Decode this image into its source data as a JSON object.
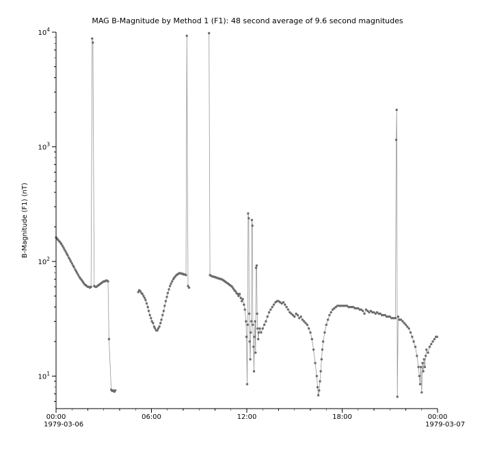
{
  "chart_data": {
    "type": "line",
    "title": "MAG B-Magnitude by Method 1 (F1): 48 second average of 9.6 second magnitudes",
    "ylabel": "B-Magnitude (F1) (nT)",
    "xlabel": "",
    "x_unit": "hours since 1979-03-06 00:00",
    "x_date_left": "1979-03-06",
    "x_date_right": "1979-03-07",
    "y_scale": "log",
    "grid": false,
    "legend": null,
    "marker_color": "#6b6b6b",
    "line_color": "#979797",
    "xlim": [
      0,
      24
    ],
    "ylim": [
      5.2,
      10000
    ],
    "x_ticks": [
      {
        "t": 0,
        "label": "00:00"
      },
      {
        "t": 6,
        "label": "06:00"
      },
      {
        "t": 12,
        "label": "12:00"
      },
      {
        "t": 18,
        "label": "18:00"
      },
      {
        "t": 24,
        "label": "00:00"
      }
    ],
    "y_ticks": [
      {
        "value": 10,
        "base": "10",
        "exp": "1"
      },
      {
        "value": 100,
        "base": "10",
        "exp": "2"
      },
      {
        "value": 1000,
        "base": "10",
        "exp": "3"
      },
      {
        "value": 10000,
        "base": "10",
        "exp": "4"
      }
    ],
    "segments": [
      [
        [
          0.0,
          162
        ],
        [
          0.07,
          158
        ],
        [
          0.13,
          154
        ],
        [
          0.2,
          150
        ],
        [
          0.27,
          146
        ],
        [
          0.33,
          142
        ],
        [
          0.4,
          137
        ],
        [
          0.47,
          132
        ],
        [
          0.53,
          127
        ],
        [
          0.6,
          122
        ],
        [
          0.67,
          117
        ],
        [
          0.73,
          113
        ],
        [
          0.8,
          108
        ],
        [
          0.87,
          104
        ],
        [
          0.93,
          100
        ],
        [
          1.0,
          96
        ],
        [
          1.07,
          92
        ],
        [
          1.13,
          89
        ],
        [
          1.2,
          85
        ],
        [
          1.27,
          82
        ],
        [
          1.33,
          79
        ],
        [
          1.4,
          76
        ],
        [
          1.47,
          73
        ],
        [
          1.53,
          71
        ],
        [
          1.6,
          69
        ],
        [
          1.67,
          67
        ],
        [
          1.73,
          65
        ],
        [
          1.8,
          63
        ],
        [
          1.87,
          62
        ],
        [
          1.93,
          61
        ],
        [
          2.0,
          60
        ],
        [
          2.07,
          60
        ],
        [
          2.13,
          59
        ],
        [
          2.2,
          60
        ],
        [
          2.27,
          8800
        ],
        [
          2.32,
          8100
        ],
        [
          2.4,
          61
        ],
        [
          2.47,
          60
        ],
        [
          2.53,
          60
        ],
        [
          2.6,
          61
        ],
        [
          2.67,
          62
        ],
        [
          2.73,
          63
        ],
        [
          2.8,
          64
        ],
        [
          2.87,
          65
        ],
        [
          2.93,
          66
        ],
        [
          3.0,
          67
        ],
        [
          3.07,
          67
        ],
        [
          3.13,
          68
        ],
        [
          3.2,
          68
        ],
        [
          3.27,
          67
        ],
        [
          3.33,
          21
        ],
        [
          3.47,
          7.6
        ],
        [
          3.53,
          7.4
        ],
        [
          3.6,
          7.5
        ],
        [
          3.67,
          7.3
        ],
        [
          3.73,
          7.5
        ]
      ],
      [
        [
          5.17,
          54
        ],
        [
          5.23,
          56
        ],
        [
          5.3,
          55
        ],
        [
          5.37,
          53
        ],
        [
          5.43,
          52
        ],
        [
          5.5,
          50
        ],
        [
          5.57,
          48
        ],
        [
          5.63,
          46
        ],
        [
          5.7,
          43
        ],
        [
          5.77,
          40
        ],
        [
          5.83,
          37
        ],
        [
          5.9,
          34
        ],
        [
          5.97,
          32
        ],
        [
          6.03,
          30
        ],
        [
          6.1,
          29
        ],
        [
          6.17,
          27
        ],
        [
          6.23,
          26
        ],
        [
          6.3,
          25
        ],
        [
          6.37,
          25
        ],
        [
          6.43,
          26
        ],
        [
          6.5,
          27
        ],
        [
          6.57,
          29
        ],
        [
          6.63,
          31
        ],
        [
          6.7,
          34
        ],
        [
          6.77,
          37
        ],
        [
          6.83,
          41
        ],
        [
          6.9,
          45
        ],
        [
          6.97,
          49
        ],
        [
          7.03,
          53
        ],
        [
          7.1,
          57
        ],
        [
          7.17,
          61
        ],
        [
          7.23,
          64
        ],
        [
          7.3,
          67
        ],
        [
          7.37,
          70
        ],
        [
          7.43,
          72
        ],
        [
          7.5,
          74
        ],
        [
          7.57,
          76
        ],
        [
          7.63,
          77
        ],
        [
          7.7,
          78
        ],
        [
          7.77,
          79
        ],
        [
          7.83,
          79
        ],
        [
          7.9,
          78
        ],
        [
          7.97,
          78
        ],
        [
          8.03,
          77
        ],
        [
          8.1,
          77
        ],
        [
          8.17,
          76
        ],
        [
          8.23,
          9300
        ],
        [
          8.3,
          61
        ],
        [
          8.37,
          59
        ]
      ],
      [
        [
          9.62,
          9800
        ],
        [
          9.68,
          76
        ],
        [
          9.75,
          75
        ],
        [
          9.82,
          74
        ],
        [
          9.88,
          74
        ],
        [
          9.95,
          73
        ],
        [
          10.02,
          73
        ],
        [
          10.08,
          72
        ],
        [
          10.15,
          72
        ],
        [
          10.22,
          71
        ],
        [
          10.28,
          71
        ],
        [
          10.35,
          70
        ],
        [
          10.42,
          70
        ],
        [
          10.48,
          69
        ],
        [
          10.55,
          68
        ],
        [
          10.62,
          67
        ],
        [
          10.68,
          66
        ],
        [
          10.75,
          65
        ],
        [
          10.82,
          64
        ],
        [
          10.88,
          63
        ],
        [
          10.95,
          62
        ],
        [
          11.02,
          61
        ],
        [
          11.08,
          60
        ],
        [
          11.15,
          58
        ],
        [
          11.22,
          56
        ],
        [
          11.28,
          55
        ],
        [
          11.35,
          53
        ],
        [
          11.42,
          52
        ],
        [
          11.48,
          50
        ],
        [
          11.55,
          52
        ],
        [
          11.62,
          48
        ],
        [
          11.68,
          45
        ],
        [
          11.75,
          47
        ],
        [
          11.82,
          42
        ],
        [
          11.88,
          38
        ],
        [
          11.95,
          30
        ],
        [
          11.98,
          22
        ],
        [
          12.02,
          8.5
        ],
        [
          12.05,
          28
        ],
        [
          12.08,
          262
        ],
        [
          12.12,
          238
        ],
        [
          12.15,
          35
        ],
        [
          12.18,
          20
        ],
        [
          12.22,
          14
        ],
        [
          12.25,
          24
        ],
        [
          12.28,
          30
        ],
        [
          12.32,
          230
        ],
        [
          12.35,
          205
        ],
        [
          12.38,
          28
        ],
        [
          12.42,
          18
        ],
        [
          12.45,
          11
        ],
        [
          12.48,
          22
        ],
        [
          12.52,
          30
        ],
        [
          12.55,
          16
        ],
        [
          12.58,
          88
        ],
        [
          12.62,
          92
        ],
        [
          12.65,
          35
        ],
        [
          12.68,
          26
        ],
        [
          12.72,
          21
        ],
        [
          12.75,
          24
        ],
        [
          12.82,
          26
        ],
        [
          12.9,
          24
        ],
        [
          13.0,
          26
        ],
        [
          13.1,
          28
        ],
        [
          13.2,
          30
        ],
        [
          13.3,
          33
        ],
        [
          13.4,
          36
        ],
        [
          13.5,
          38
        ],
        [
          13.6,
          40
        ],
        [
          13.7,
          42
        ],
        [
          13.8,
          44
        ],
        [
          13.9,
          45
        ],
        [
          14.0,
          45
        ],
        [
          14.1,
          44
        ],
        [
          14.2,
          43
        ],
        [
          14.3,
          44
        ],
        [
          14.4,
          42
        ],
        [
          14.5,
          40
        ],
        [
          14.6,
          38
        ],
        [
          14.7,
          36
        ],
        [
          14.8,
          35
        ],
        [
          14.9,
          34
        ],
        [
          15.0,
          33
        ],
        [
          15.1,
          35
        ],
        [
          15.2,
          34
        ],
        [
          15.3,
          32
        ],
        [
          15.4,
          33
        ],
        [
          15.5,
          31
        ],
        [
          15.6,
          30
        ],
        [
          15.7,
          29
        ],
        [
          15.8,
          28
        ],
        [
          15.9,
          26
        ],
        [
          16.0,
          24
        ],
        [
          16.1,
          21
        ],
        [
          16.2,
          17
        ],
        [
          16.3,
          13
        ],
        [
          16.4,
          10
        ],
        [
          16.45,
          8
        ],
        [
          16.5,
          6.8
        ],
        [
          16.55,
          7.5
        ],
        [
          16.6,
          9
        ],
        [
          16.65,
          11
        ],
        [
          16.7,
          14
        ],
        [
          16.75,
          17
        ],
        [
          16.8,
          20
        ],
        [
          16.9,
          24
        ],
        [
          17.0,
          28
        ],
        [
          17.1,
          31
        ],
        [
          17.2,
          34
        ],
        [
          17.3,
          36
        ],
        [
          17.4,
          38
        ],
        [
          17.5,
          39
        ],
        [
          17.6,
          40
        ],
        [
          17.7,
          41
        ],
        [
          17.8,
          41
        ],
        [
          17.9,
          41
        ],
        [
          18.0,
          41
        ],
        [
          18.1,
          41
        ],
        [
          18.2,
          41
        ],
        [
          18.3,
          41
        ],
        [
          18.4,
          40
        ],
        [
          18.5,
          40
        ],
        [
          18.6,
          40
        ],
        [
          18.7,
          40
        ],
        [
          18.8,
          39
        ],
        [
          18.9,
          39
        ],
        [
          19.0,
          39
        ],
        [
          19.1,
          38
        ],
        [
          19.2,
          38
        ],
        [
          19.3,
          37
        ],
        [
          19.4,
          35
        ],
        [
          19.5,
          38
        ],
        [
          19.6,
          37
        ],
        [
          19.7,
          36
        ],
        [
          19.8,
          37
        ],
        [
          19.9,
          36
        ],
        [
          20.0,
          36
        ],
        [
          20.1,
          35
        ],
        [
          20.2,
          36
        ],
        [
          20.3,
          35
        ],
        [
          20.4,
          35
        ],
        [
          20.5,
          34
        ],
        [
          20.6,
          34
        ],
        [
          20.7,
          34
        ],
        [
          20.8,
          33
        ],
        [
          20.9,
          33
        ],
        [
          21.0,
          33
        ],
        [
          21.1,
          32
        ],
        [
          21.2,
          32
        ],
        [
          21.3,
          32
        ],
        [
          21.35,
          32
        ],
        [
          21.4,
          1150
        ],
        [
          21.43,
          2100
        ],
        [
          21.47,
          6.6
        ],
        [
          21.52,
          33
        ],
        [
          21.6,
          31
        ],
        [
          21.7,
          31
        ],
        [
          21.8,
          30
        ],
        [
          21.9,
          29
        ],
        [
          22.0,
          28
        ],
        [
          22.1,
          27
        ],
        [
          22.2,
          26
        ],
        [
          22.3,
          24
        ],
        [
          22.4,
          22
        ],
        [
          22.5,
          20
        ],
        [
          22.6,
          18
        ],
        [
          22.7,
          15
        ],
        [
          22.8,
          12
        ],
        [
          22.85,
          10
        ],
        [
          22.9,
          8.5
        ],
        [
          22.95,
          12
        ],
        [
          23.0,
          7.2
        ],
        [
          23.05,
          13
        ],
        [
          23.1,
          11
        ],
        [
          23.15,
          14
        ],
        [
          23.2,
          12
        ],
        [
          23.25,
          15
        ],
        [
          23.3,
          17
        ],
        [
          23.4,
          16
        ],
        [
          23.5,
          18
        ],
        [
          23.6,
          19
        ],
        [
          23.7,
          20
        ],
        [
          23.8,
          21
        ],
        [
          23.9,
          22
        ],
        [
          23.97,
          22
        ]
      ]
    ]
  }
}
